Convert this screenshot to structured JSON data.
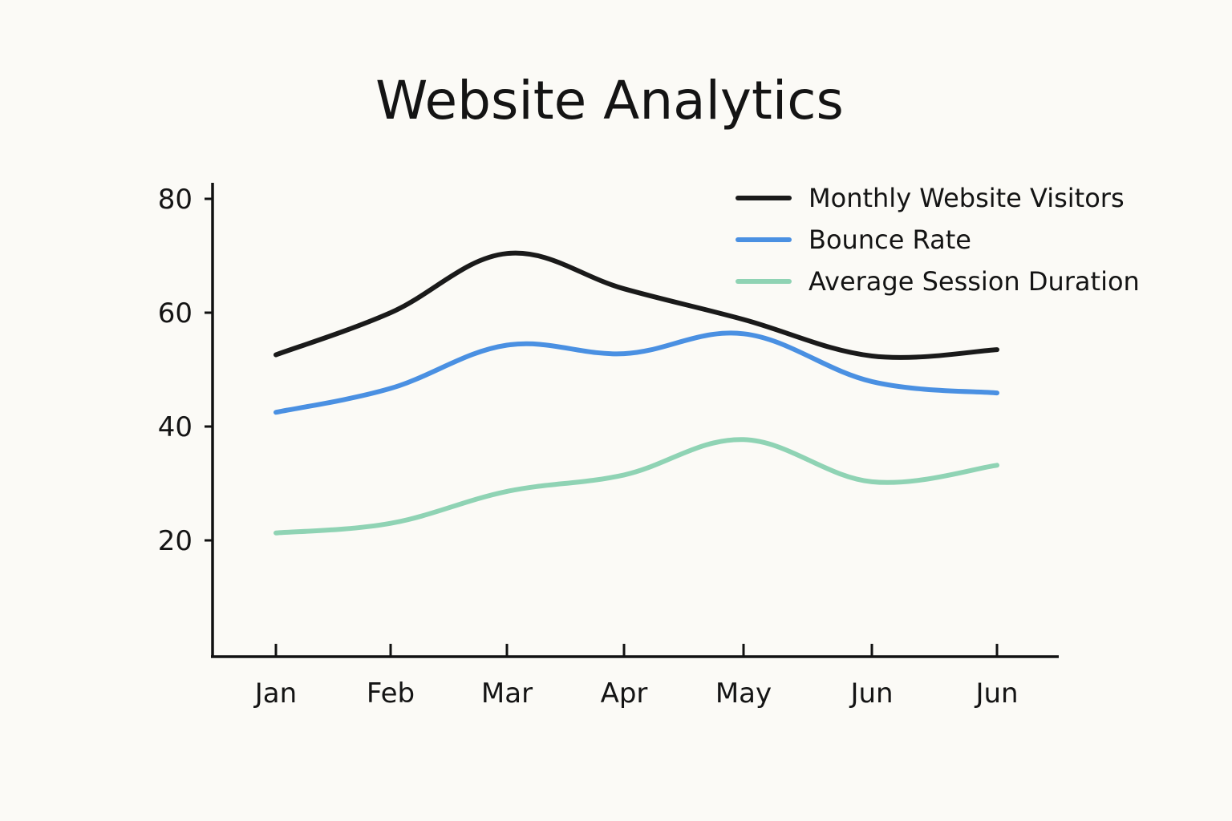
{
  "chart_data": {
    "type": "line",
    "title": "Website Analytics",
    "xlabel": "",
    "ylabel": "",
    "categories": [
      "Jan",
      "Feb",
      "Mar",
      "Apr",
      "May",
      "Jun",
      "Jun"
    ],
    "ylim": [
      0,
      83
    ],
    "yticks": [
      20,
      40,
      60,
      80
    ],
    "grid": false,
    "legend_position": "top-right",
    "series": [
      {
        "name": "Monthly Website Visitors",
        "color": "#1a1a1a",
        "values": [
          52.6,
          60,
          70.4,
          64.2,
          58.8,
          52.4,
          53.5
        ]
      },
      {
        "name": "Bounce Rate",
        "color": "#4a90e2",
        "values": [
          42.5,
          46.7,
          54.3,
          52.8,
          56.3,
          47.9,
          45.9
        ]
      },
      {
        "name": "Average Session Duration",
        "color": "#8fd3b4",
        "values": [
          21.3,
          23.0,
          28.6,
          31.5,
          37.7,
          30.3,
          33.2
        ]
      }
    ]
  }
}
